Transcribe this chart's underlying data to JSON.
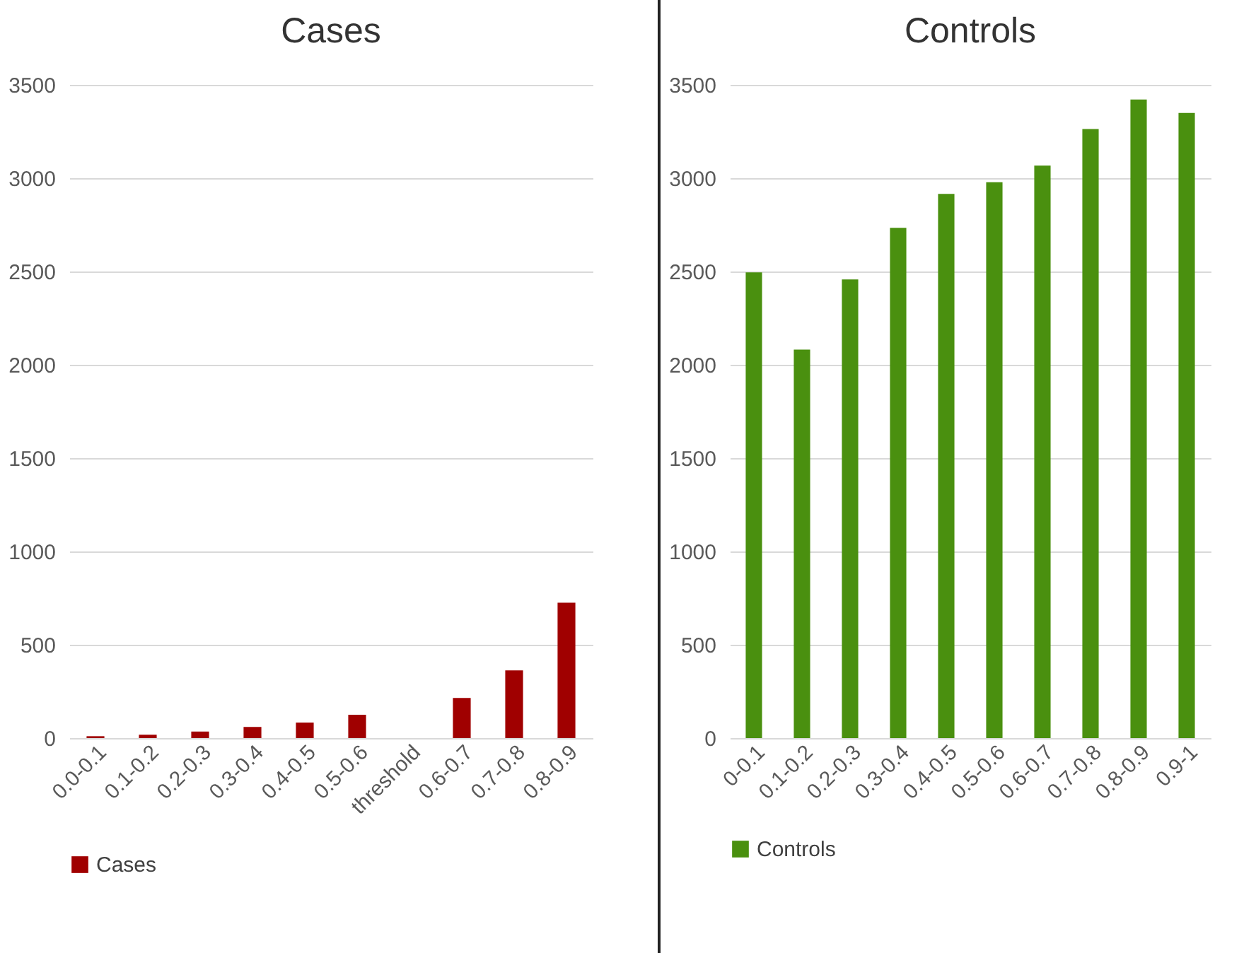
{
  "chart_data": [
    {
      "type": "bar",
      "title": "Cases",
      "categories": [
        "0.0-0.1",
        "0.1-0.2",
        "0.2-0.3",
        "0.3-0.4",
        "0.4-0.5",
        "0.5-0.6",
        "threshold",
        "0.6-0.7",
        "0.7-0.8",
        "0.8-0.9"
      ],
      "series": [
        {
          "name": "Cases",
          "color": "#a00000",
          "values": [
            10,
            18,
            35,
            60,
            83,
            125,
            null,
            215,
            363,
            725
          ]
        }
      ],
      "ylim": [
        0,
        3500
      ],
      "yticks": [
        0,
        500,
        1000,
        1500,
        2000,
        2500,
        3000,
        3500
      ],
      "grid": "y",
      "legend": "bottom"
    },
    {
      "type": "bar",
      "title": "Controls",
      "categories": [
        "0-0.1",
        "0.1-0.2",
        "0.2-0.3",
        "0.3-0.4",
        "0.4-0.5",
        "0.5-0.6",
        "0.6-0.7",
        "0.7-0.8",
        "0.8-0.9",
        "0.9-1"
      ],
      "series": [
        {
          "name": "Controls",
          "color": "#4a900f",
          "values": [
            2495,
            2081,
            2457,
            2734,
            2916,
            2978,
            3067,
            3263,
            3421,
            3349
          ]
        }
      ],
      "ylim": [
        0,
        3500
      ],
      "yticks": [
        0,
        500,
        1000,
        1500,
        2000,
        2500,
        3000,
        3500
      ],
      "grid": "y",
      "legend": "bottom"
    }
  ]
}
